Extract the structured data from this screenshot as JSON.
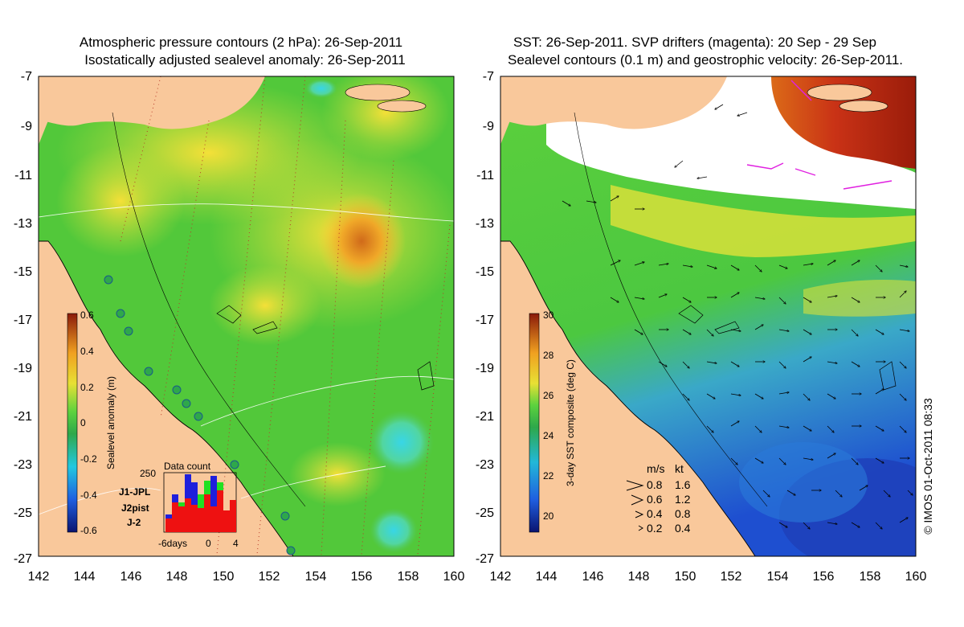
{
  "left_panel": {
    "title_line1": "Atmospheric pressure contours (2 hPa): 26-Sep-2011",
    "title_line2": "Isostatically adjusted sealevel anomaly: 26-Sep-2011",
    "y_ticks": [
      "-7",
      "-9",
      "-11",
      "-13",
      "-15",
      "-17",
      "-19",
      "-21",
      "-23",
      "-25",
      "-27"
    ],
    "x_ticks": [
      "142",
      "144",
      "146",
      "148",
      "150",
      "152",
      "154",
      "156",
      "158",
      "160"
    ],
    "colorbar": {
      "label": "Sealevel anomaly (m)",
      "ticks": [
        "0.6",
        "0.4",
        "0.2",
        "0",
        "-0.2",
        "-0.4",
        "-0.6"
      ],
      "range": [
        -0.6,
        0.6
      ]
    },
    "inset": {
      "title": "Data count",
      "y_tick": "250",
      "x_ticks": [
        "-6days",
        "0",
        "4"
      ],
      "legend": [
        {
          "label": "J1-JPL",
          "color": "#1f1fdc"
        },
        {
          "label": "J2pist",
          "color": "#22e022"
        },
        {
          "label": "J-2",
          "color": "#ee1111"
        }
      ]
    }
  },
  "right_panel": {
    "title_line1": "SST: 26-Sep-2011. SVP drifters (magenta): 20 Sep - 29 Sep",
    "title_line2": "Sealevel contours (0.1 m) and geostrophic velocity: 26-Sep-2011.",
    "y_ticks": [
      "-7",
      "-9",
      "-11",
      "-13",
      "-15",
      "-17",
      "-19",
      "-21",
      "-23",
      "-25",
      "-27"
    ],
    "x_ticks": [
      "142",
      "144",
      "146",
      "148",
      "150",
      "152",
      "154",
      "156",
      "158",
      "160"
    ],
    "colorbar": {
      "label": "3-day SST composite (deg C)",
      "ticks": [
        "30",
        "28",
        "26",
        "24",
        "22",
        "20"
      ],
      "range": [
        19,
        30
      ]
    },
    "velocity_key": {
      "header_ms": "m/s",
      "header_kt": "kt",
      "rows": [
        {
          "ms": "0.8",
          "kt": "1.6"
        },
        {
          "ms": "0.6",
          "kt": "1.2"
        },
        {
          "ms": "0.4",
          "kt": "0.8"
        },
        {
          "ms": "0.2",
          "kt": "0.4"
        }
      ]
    }
  },
  "credit": "© IMOS 01-Oct-2011 08:33",
  "colors": {
    "land": "#f9c89b",
    "sla_green": "#4fc83a",
    "sla_yellow": "#d9e43a",
    "sla_orange": "#e8a020",
    "sst_green": "#5ccf3c",
    "sst_blue": "#2f8ae0",
    "sst_red": "#c93216",
    "cloud": "#ffffff"
  }
}
